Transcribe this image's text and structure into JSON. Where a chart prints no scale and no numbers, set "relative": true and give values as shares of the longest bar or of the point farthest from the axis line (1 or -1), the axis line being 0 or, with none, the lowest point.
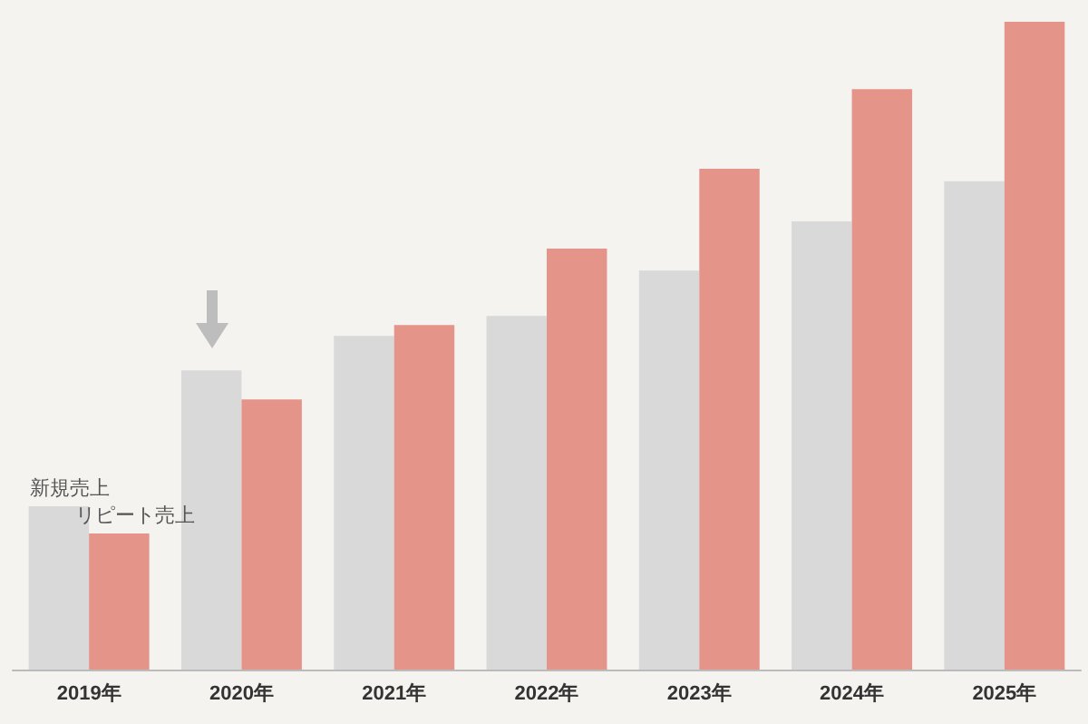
{
  "chart_data": {
    "type": "bar",
    "relative": true,
    "categories": [
      "2019年",
      "2020年",
      "2021年",
      "2022年",
      "2023年",
      "2024年",
      "2025年"
    ],
    "series": [
      {
        "name": "新規売上",
        "color": "#d9d9d9",
        "values": [
          0.252,
          0.462,
          0.515,
          0.546,
          0.616,
          0.692,
          0.754
        ]
      },
      {
        "name": "リピート売上",
        "color": "#e5948a",
        "values": [
          0.21,
          0.417,
          0.532,
          0.65,
          0.773,
          0.896,
          1
        ]
      }
    ],
    "legend": false
  }
}
